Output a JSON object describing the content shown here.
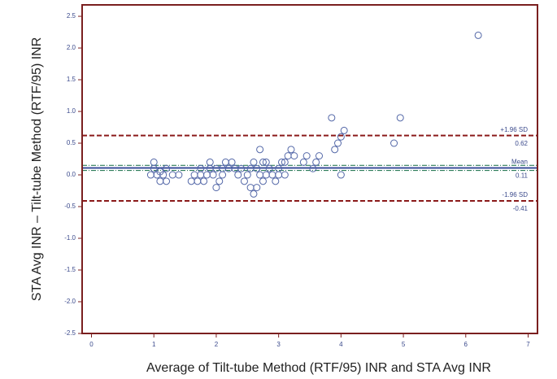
{
  "chart_data": {
    "type": "scatter",
    "xlabel": "Average of Tilt-tube Method (RTF/95) INR and STA Avg INR",
    "ylabel": "STA Avg INR – Tilt-tube Method (RTF/95) INR",
    "x": [
      0.95,
      1.0,
      1.0,
      1.05,
      1.1,
      1.1,
      1.15,
      1.2,
      1.2,
      1.3,
      1.4,
      1.6,
      1.65,
      1.7,
      1.75,
      1.75,
      1.8,
      1.85,
      1.9,
      1.9,
      1.95,
      2.0,
      2.0,
      2.05,
      2.1,
      2.1,
      2.15,
      2.2,
      2.25,
      2.3,
      2.35,
      2.4,
      2.45,
      2.5,
      2.55,
      2.55,
      2.6,
      2.6,
      2.65,
      2.65,
      2.7,
      2.7,
      2.75,
      2.75,
      2.8,
      2.8,
      2.85,
      2.9,
      2.95,
      3.0,
      3.0,
      3.05,
      3.1,
      3.1,
      3.15,
      3.2,
      3.25,
      3.4,
      3.45,
      3.55,
      3.6,
      3.65,
      3.85,
      3.9,
      3.95,
      4.0,
      4.0,
      4.05,
      4.85,
      4.95,
      6.2
    ],
    "values": [
      0,
      0.1,
      0.2,
      0,
      -0.1,
      0.05,
      0,
      -0.1,
      0.1,
      0,
      0,
      -0.1,
      0,
      -0.1,
      0.1,
      0,
      -0.1,
      0,
      0.1,
      0.2,
      0,
      -0.2,
      0.1,
      -0.1,
      0,
      0.1,
      0.2,
      0.1,
      0.2,
      0.1,
      0,
      0.1,
      -0.1,
      0,
      -0.2,
      0.1,
      -0.3,
      0.2,
      -0.2,
      0.1,
      0,
      0.4,
      0.2,
      -0.1,
      0,
      0.2,
      0.1,
      0,
      -0.1,
      0,
      0.1,
      0.2,
      0,
      0.2,
      0.3,
      0.4,
      0.3,
      0.2,
      0.3,
      0.1,
      0.2,
      0.3,
      0.9,
      0.4,
      0.5,
      0,
      0.6,
      0.7,
      0.5,
      0.9,
      2.2
    ],
    "color": "#5468a8",
    "xlim": [
      -0.15,
      7.15
    ],
    "ylim": [
      -2.5,
      2.68
    ],
    "xticks": [
      0,
      1,
      2,
      3,
      4,
      5,
      6,
      7
    ],
    "yticks": [
      {
        "value": 2.5,
        "label": "2.5"
      },
      {
        "value": 2,
        "label": "2.0"
      },
      {
        "value": 1.5,
        "label": "1.5"
      },
      {
        "value": 1,
        "label": "1.0"
      },
      {
        "value": 0.5,
        "label": "0.5"
      },
      {
        "value": 0,
        "label": "0.0"
      },
      {
        "value": -0.5,
        "label": "-0.5"
      },
      {
        "value": -1,
        "label": "-1.0"
      },
      {
        "value": -1.5,
        "label": "-1.5"
      },
      {
        "value": -2,
        "label": "-2.0"
      },
      {
        "value": -2.5,
        "label": "-2.5"
      }
    ],
    "reference_lines": [
      {
        "label": "+1.96 SD",
        "value": 0.62,
        "color": "#8b1a1a",
        "style": "dashed"
      },
      {
        "label": "Mean",
        "value": 0.11,
        "color": "#3a4d9a",
        "style": "solid"
      },
      {
        "label": "-1.96 SD",
        "value": -0.41,
        "color": "#8b1a1a",
        "style": "dashed"
      }
    ],
    "ci_lines": [
      {
        "value": 0.15,
        "color": "#2e7d5a"
      },
      {
        "value": 0.07,
        "color": "#2e7d5a"
      }
    ]
  }
}
